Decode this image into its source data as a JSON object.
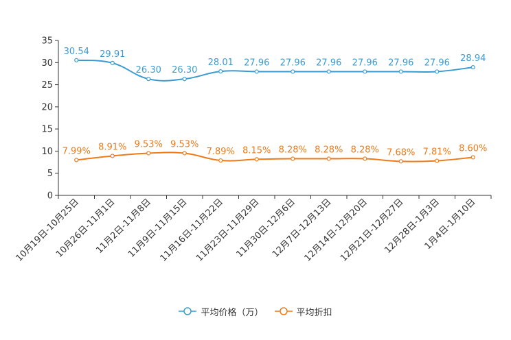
{
  "chart_data": {
    "type": "line",
    "categories": [
      "10月19日-10月25日",
      "10月26日-11月1日",
      "11月2日-11月8日",
      "11月9日-11月15日",
      "11月16日-11月22日",
      "11月23日-11月29日",
      "11月30日-12月6日",
      "12月7日-12月13日",
      "12月14日-12月20日",
      "12月21日-12月27日",
      "12月28日-1月3日",
      "1月4日-1月10日"
    ],
    "series": [
      {
        "name": "平均价格（万）",
        "color": "#3a9bd2",
        "values": [
          30.54,
          29.91,
          26.3,
          26.3,
          28.01,
          27.96,
          27.96,
          27.96,
          27.96,
          27.96,
          27.96,
          28.94
        ],
        "labels": [
          "30.54",
          "29.91",
          "26.30",
          "26.30",
          "28.01",
          "27.96",
          "27.96",
          "27.96",
          "27.96",
          "27.96",
          "27.96",
          "28.94"
        ]
      },
      {
        "name": "平均折扣",
        "color": "#f07a17",
        "values": [
          7.99,
          8.91,
          9.53,
          9.53,
          7.89,
          8.15,
          8.28,
          8.28,
          8.28,
          7.68,
          7.81,
          8.6
        ],
        "labels": [
          "7.99%",
          "8.91%",
          "9.53%",
          "9.53%",
          "7.89%",
          "8.15%",
          "8.28%",
          "8.28%",
          "8.28%",
          "7.68%",
          "7.81%",
          "8.60%"
        ]
      }
    ],
    "yticks": [
      0,
      5,
      10,
      15,
      20,
      25,
      30,
      35
    ],
    "ylim": [
      0,
      35
    ],
    "title": "",
    "xlabel": "",
    "ylabel": "",
    "legend_position": "bottom"
  }
}
